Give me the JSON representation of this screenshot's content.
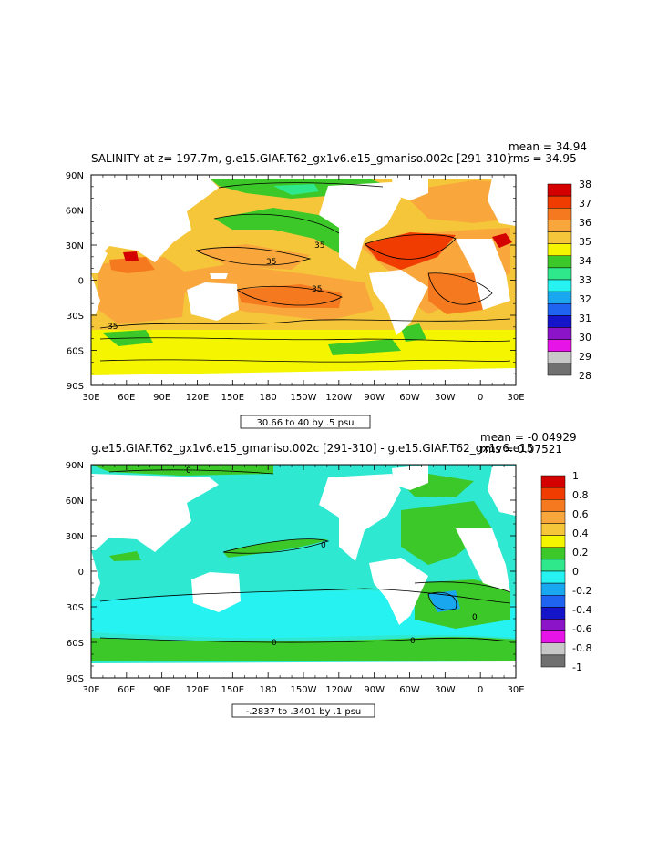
{
  "panels": [
    {
      "title": "SALINITY at z= 197.7m, g.e15.GIAF.T62_gx1v6.e15_gmaniso.002c [291-310]",
      "mean_text": "mean = 34.94",
      "rms_text": "rms = 34.95",
      "range_text": "30.66 to 40 by .5 psu",
      "lat_labels": [
        "90N",
        "60N",
        "30N",
        "0",
        "30S",
        "60S",
        "90S"
      ],
      "lon_labels": [
        "30E",
        "60E",
        "90E",
        "120E",
        "150E",
        "180",
        "150W",
        "120W",
        "90W",
        "60W",
        "30W",
        "0",
        "30E"
      ],
      "legend_labels": [
        "38",
        "37",
        "36",
        "35",
        "34",
        "33",
        "32",
        "31",
        "30",
        "29",
        "28"
      ],
      "legend_colors": [
        "#d40000",
        "#f03c00",
        "#f57a1f",
        "#f9a63c",
        "#f6c63a",
        "#f5f500",
        "#3cc828",
        "#2fe88c",
        "#26f2f2",
        "#19a8f0",
        "#1e64f0",
        "#1414c8",
        "#8c14c8",
        "#e614e6",
        "#c8c8c8",
        "#707070"
      ],
      "contour_labels": [
        "35",
        "35",
        "35",
        "35"
      ]
    },
    {
      "title": "g.e15.GIAF.T62_gx1v6.e15_gmaniso.002c [291-310] - g.e15.GIAF.T62_gx1v6.e15",
      "mean_text": "mean = -0.04929",
      "rms_text": "rms = 0.07521",
      "range_text": "-.2837 to .3401 by .1 psu",
      "lat_labels": [
        "90N",
        "60N",
        "30N",
        "0",
        "30S",
        "60S",
        "90S"
      ],
      "lon_labels": [
        "30E",
        "60E",
        "90E",
        "120E",
        "150E",
        "180",
        "150W",
        "120W",
        "90W",
        "60W",
        "30W",
        "0",
        "30E"
      ],
      "legend_labels": [
        "1",
        "0.8",
        "0.6",
        "0.4",
        "0.2",
        "0",
        "-0.2",
        "-0.4",
        "-0.6",
        "-0.8",
        "-1"
      ],
      "legend_colors": [
        "#d40000",
        "#f03c00",
        "#f57a1f",
        "#f9a63c",
        "#f6c63a",
        "#f5f500",
        "#3cc828",
        "#2fe88c",
        "#26f2f2",
        "#19a8f0",
        "#1e64f0",
        "#1414c8",
        "#8c14c8",
        "#e614e6",
        "#c8c8c8",
        "#707070"
      ],
      "contour_labels": [
        "0",
        "0",
        "0",
        "0",
        "0"
      ]
    }
  ],
  "map_colors": {
    "land": "#ffffff",
    "s_orange_dark": "#f57a1f",
    "s_orange": "#f9a63c",
    "s_yellow_orange": "#f6c63a",
    "s_yellow": "#f5f500",
    "s_green": "#3cc828",
    "s_red": "#d40000",
    "d_cyan": "#2fe8d2",
    "d_cyan_light": "#26f2f2",
    "d_green": "#3cc828",
    "d_blue": "#19a8f0"
  }
}
